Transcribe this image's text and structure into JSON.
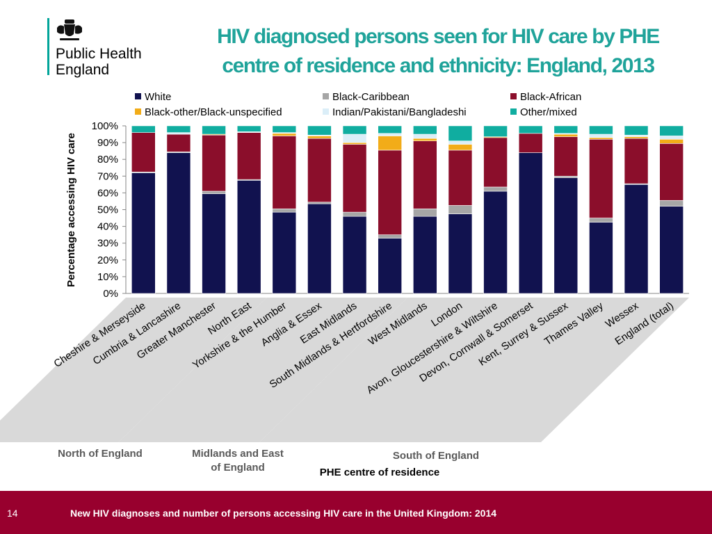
{
  "logo": {
    "line1": "Public Health",
    "line2": "England"
  },
  "title": {
    "line1": "HIV diagnosed persons seen for HIV care by PHE",
    "line2": "centre of residence and ethnicity: England, 2013"
  },
  "colors": {
    "title": "#1fa39a",
    "White": "#11124f",
    "Black-Caribbean": "#a6a6a6",
    "Black-African": "#8b0e2b",
    "Black-other/Black-unspecified": "#f2ac18",
    "Indian/Pakistani/Bangladeshi": "#dbeef8",
    "Other/mixed": "#10ada0",
    "region_band": "#d9d9d9",
    "footer": "#98002e"
  },
  "chart_data": {
    "type": "bar",
    "stacked": true,
    "ylabel": "Percentage accessing HIV care",
    "xlabel": "PHE centre of residence",
    "ylim": [
      0,
      100
    ],
    "y_ticks": [
      "0%",
      "10%",
      "20%",
      "30%",
      "40%",
      "50%",
      "60%",
      "70%",
      "80%",
      "90%",
      "100%"
    ],
    "legend_position": "top",
    "categories": [
      "Cheshire & Merseyside",
      "Cumbria & Lancashire",
      "Greater Manchester",
      "North East",
      "Yorkshire & the Humber",
      "Anglia & Essex",
      "East Midlands",
      "South Midlands & Hertfordshire",
      "West Midlands",
      "London",
      "Avon, Gloucestershire & Wiltshire",
      "Devon, Cornwall & Somerset",
      "Kent, Surrey & Sussex",
      "Thames Valley",
      "Wessex",
      "England (total)"
    ],
    "series": [
      {
        "name": "White",
        "values": [
          72,
          84,
          59.5,
          67.5,
          48.5,
          53.5,
          46,
          33,
          46,
          47.5,
          61,
          84,
          69,
          42.5,
          65,
          52
        ]
      },
      {
        "name": "Black-Caribbean",
        "values": [
          0.5,
          0.5,
          1.5,
          0.5,
          2,
          1,
          2.5,
          2,
          4.5,
          5,
          2.5,
          0,
          1,
          2.5,
          0.5,
          3.5
        ]
      },
      {
        "name": "Black-African",
        "values": [
          23.5,
          10.5,
          33.5,
          28,
          43.5,
          38,
          40.5,
          50.5,
          40.5,
          33,
          29.5,
          11.5,
          23.5,
          47,
          27,
          34
        ]
      },
      {
        "name": "Black-other/Black-unspecified",
        "values": [
          0,
          0,
          0.5,
          0,
          1.5,
          1.5,
          1,
          8.5,
          1.5,
          3.5,
          0.5,
          0,
          1.5,
          1,
          1,
          2.5
        ]
      },
      {
        "name": "Indian/Pakistani/Bangladeshi",
        "values": [
          0,
          1,
          0,
          0.5,
          0.5,
          0.5,
          5,
          1.5,
          2.5,
          2,
          0,
          0,
          0.5,
          2,
          1,
          2
        ]
      },
      {
        "name": "Other/mixed",
        "values": [
          4,
          4,
          5,
          3.5,
          4,
          5.5,
          5,
          4.5,
          5,
          9,
          6.5,
          4.5,
          4.5,
          5,
          5.5,
          6
        ]
      }
    ],
    "regions": [
      {
        "name": "North of England",
        "lines": [
          "North of England"
        ]
      },
      {
        "name": "Midlands and East of England",
        "lines": [
          "Midlands and East",
          "of England"
        ]
      },
      {
        "name": "South of England",
        "lines": [
          "South of England"
        ]
      }
    ]
  },
  "footer": {
    "page_number": "14",
    "text": "New HIV diagnoses and number of persons accessing HIV care in the United Kingdom: 2014"
  }
}
